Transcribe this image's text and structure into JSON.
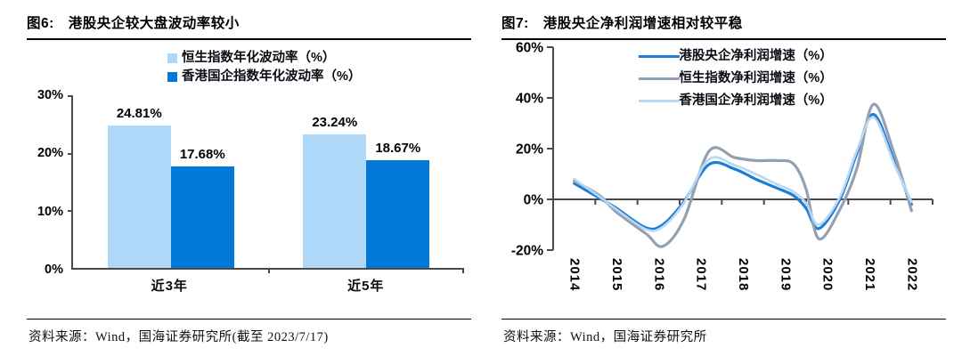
{
  "fig6": {
    "label": "图6:",
    "title": "港股央企较大盘波动率较小",
    "source": "资料来源：Wind，国海证券研究所(截至 2023/7/17)"
  },
  "fig7": {
    "label": "图7:",
    "title": "港股央企净利润增速相对较平稳",
    "source": "资料来源：Wind，国海证券研究所"
  },
  "colors": {
    "hsi_volatility_light_blue": "#AFD7F7",
    "hshares_volatility_dark_blue": "#0279D8",
    "central_soe_line_blue": "#1C7CD6",
    "hsi_line_gray": "#92A1B2",
    "hshares_line_light_blue": "#B9D8F3",
    "axis": "#4a4a4a"
  },
  "chart_data": [
    {
      "type": "bar",
      "figure": "图6",
      "title": "港股央企较大盘波动率较小",
      "categories": [
        "近3年",
        "近5年"
      ],
      "series": [
        {
          "name": "恒生指数年化波动率（%）",
          "color": "#AFD7F7",
          "values": [
            24.81,
            23.24
          ]
        },
        {
          "name": "香港国企指数年化波动率（%）",
          "color": "#0279D8",
          "values": [
            17.68,
            18.67
          ]
        }
      ],
      "value_labels": [
        "24.81%",
        "17.68%",
        "23.24%",
        "18.67%"
      ],
      "ylim": [
        0,
        30
      ],
      "yticks": [
        "0%",
        "10%",
        "20%",
        "30%"
      ],
      "grid": false,
      "legend_position": "top"
    },
    {
      "type": "line",
      "figure": "图7",
      "title": "港股央企净利润增速相对较平稳",
      "categories": [
        "2014",
        "2015",
        "2016",
        "2017",
        "2018",
        "2019",
        "2020",
        "2021",
        "2022"
      ],
      "x": [
        2014.0,
        2014.6,
        2015.0,
        2015.7,
        2016.1,
        2016.6,
        2017.2,
        2017.8,
        2018.3,
        2018.8,
        2019.2,
        2019.5,
        2019.8,
        2020.3,
        2020.7,
        2021.1,
        2021.6,
        2022.0
      ],
      "series": [
        {
          "name": "港股央企净利润增速（%）",
          "color": "#1C7CD6",
          "width": 3.2,
          "values": [
            6.3,
            0.5,
            -3.5,
            -11.2,
            -10.0,
            -1.0,
            13.8,
            12.0,
            8.0,
            4.5,
            1.5,
            -3.5,
            -11.5,
            0.0,
            18.0,
            33.5,
            14.5,
            -2.0
          ]
        },
        {
          "name": "恒生指数净利润增速（%）",
          "color": "#92A1B2",
          "width": 3.2,
          "values": [
            7.3,
            1.5,
            -5.0,
            -13.5,
            -18.5,
            -8.0,
            19.0,
            16.5,
            15.3,
            15.3,
            14.0,
            4.0,
            -15.5,
            -4.0,
            12.0,
            37.5,
            17.5,
            -4.5
          ]
        },
        {
          "name": "香港国企净利润增速（%）",
          "color": "#B9D8F3",
          "width": 2.7,
          "values": [
            8.0,
            1.0,
            -4.0,
            -11.8,
            -10.8,
            -1.5,
            15.8,
            13.5,
            10.0,
            6.0,
            3.0,
            -1.5,
            -10.0,
            1.0,
            19.0,
            32.3,
            13.5,
            -1.0
          ]
        }
      ],
      "xlim": [
        2013.5,
        2022.5
      ],
      "ylim": [
        -20,
        60
      ],
      "yticks": [
        "-20%",
        "0%",
        "20%",
        "40%",
        "60%"
      ],
      "grid": false,
      "legend_position": "top"
    }
  ]
}
